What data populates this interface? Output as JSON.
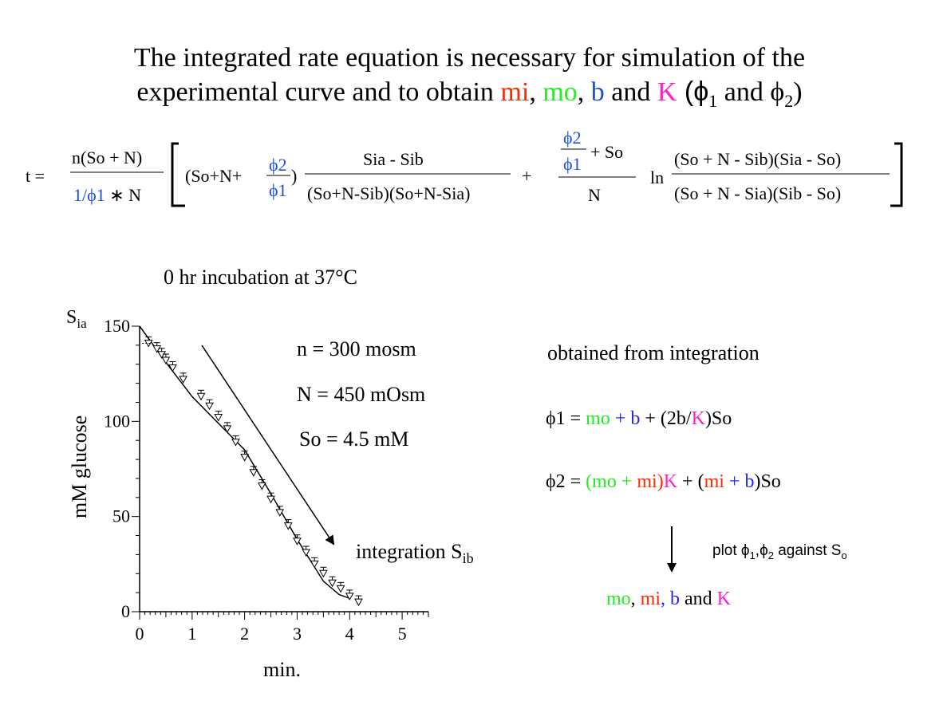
{
  "title": {
    "line1": "The integrated rate equation is necessary for simulation of the",
    "line2_a": "experimental curve and to obtain ",
    "mi": "mi",
    "sep1": ", ",
    "mo": "mo",
    "sep2": ", ",
    "b": "b",
    "and": " and ",
    "K": "K",
    "phi": "  (ϕ",
    "sub1": "1",
    "and2": " and ϕ",
    "sub2": "2",
    "close": ")"
  },
  "equation": {
    "t": "t =",
    "n_num": "n(So + N)",
    "n_den_a": "1/ϕ1",
    "n_den_b": " ∗ N",
    "term1_a": "(So+N+",
    "phi2": "ϕ2",
    "phi1": "ϕ1",
    "term1_b": ")",
    "frac2_num": "Sia - Sib",
    "frac2_den": "(So+N-Sib)(So+N-Sia)",
    "plus": "+",
    "frac3_num_b": "+ So",
    "frac3_den": "N",
    "ln": "ln",
    "frac4_num": "(So + N - Sib)(Sia - So)",
    "frac4_den": "(So + N - Sia)(Sib - So)"
  },
  "params": {
    "incubation": "0 hr incubation at 37°C",
    "n": "n = 300 mosm",
    "N": "N = 450 mOsm",
    "So": "So = 4.5 mM",
    "integration": "integration S",
    "integration_sub": "ib"
  },
  "right": {
    "obtained": "obtained from integration",
    "phi1_lhs": "ϕ1  =  ",
    "phi1_mo": "mo",
    "phi1_plus_b": " + b",
    "phi1_rest_a": " + (2b/",
    "phi1_K": "K",
    "phi1_rest_b": ")So",
    "phi2_lhs": "ϕ2  =  ",
    "phi2_mo": "(mo + ",
    "phi2_mi": "mi)",
    "phi2_K": "K",
    "phi2_plus": " + (",
    "phi2_mi2": "mi",
    "phi2_b": " + b",
    "phi2_end": ")So",
    "plot_label": "plot ϕ",
    "plot_sub1": "1",
    "plot_comma": ",ϕ",
    "plot_sub2": "2",
    "plot_against": " against S",
    "plot_subo": "o",
    "result_mo": "mo",
    "result_sep": ", ",
    "result_mi": "mi",
    "result_b": ", b",
    "result_and": " and ",
    "result_K": "K"
  },
  "colors": {
    "red": "#ff2a00",
    "green": "#22ee22",
    "blue": "#1f4fd8",
    "magenta": "#ff22cc",
    "data_blue": "#2222ff"
  },
  "chart_data": {
    "type": "scatter",
    "xlabel": "min.",
    "ylabel": "mM glucose",
    "y_corner_label": "S",
    "y_corner_sub": "ia",
    "xlim": [
      0,
      5.5
    ],
    "ylim": [
      0,
      150
    ],
    "x_ticks": [
      0,
      1,
      2,
      3,
      4,
      5
    ],
    "y_ticks": [
      0,
      50,
      100,
      150
    ],
    "x_ticks_labels": [
      "0",
      "1",
      "2",
      "3",
      "4",
      "5"
    ],
    "y_ticks_labels": [
      "0",
      "50",
      "100",
      "150"
    ],
    "grid": false,
    "series": [
      {
        "marker": "triangle-down",
        "x": [
          0.17,
          0.33,
          0.42,
          0.5,
          0.63,
          0.83,
          1.17,
          1.33,
          1.5,
          1.67,
          1.83,
          2.0,
          2.17,
          2.33,
          2.5,
          2.67,
          2.83,
          3.0,
          3.17,
          3.33,
          3.5,
          3.67,
          3.83,
          4.0,
          4.17
        ],
        "y": [
          141,
          138,
          135,
          132,
          128,
          122,
          113,
          108,
          102,
          96,
          89,
          81,
          73,
          66,
          59,
          52,
          45,
          37,
          31,
          25,
          20,
          15,
          12,
          8,
          5
        ]
      }
    ],
    "fit_line": {
      "x": [
        0,
        0.5,
        1.0,
        1.5,
        2.0,
        2.5,
        3.0,
        3.5,
        3.8,
        4.0
      ],
      "y": [
        150,
        131,
        113,
        99,
        85,
        62,
        38,
        16,
        9,
        7
      ]
    }
  }
}
